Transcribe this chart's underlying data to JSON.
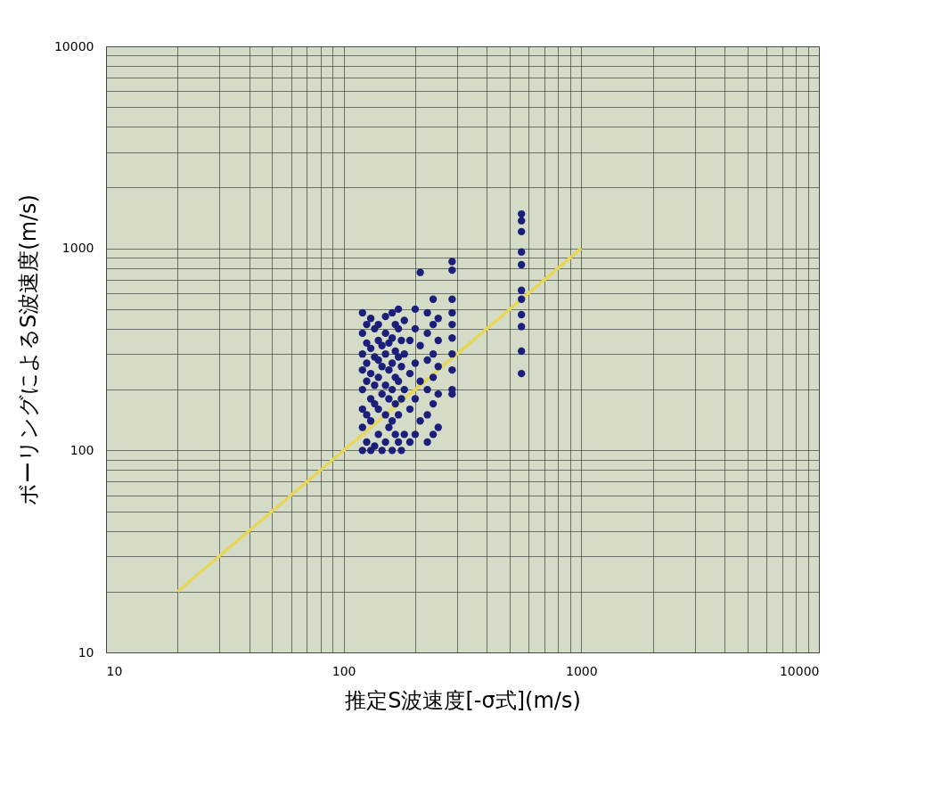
{
  "chart_data": {
    "type": "scatter",
    "xlabel": "推定S波速度[-σ式](m/s)",
    "ylabel": "ボーリングによるS波速度(m/s)",
    "log": "xy",
    "grid": true,
    "xlim": [
      10,
      10000
    ],
    "ylim": [
      10,
      10000
    ],
    "xticks": [
      10,
      {
        "value": 20,
        "label": null
      },
      {
        "value": 30,
        "label": null
      },
      {
        "value": 40,
        "label": null
      },
      {
        "value": 50,
        "label": null
      },
      {
        "value": 60,
        "label": null
      },
      {
        "value": 70,
        "label": null
      },
      {
        "value": 80,
        "label": null
      },
      {
        "value": 90,
        "label": null
      },
      100,
      {
        "value": 200,
        "label": null
      },
      {
        "value": 300,
        "label": null
      },
      {
        "value": 400,
        "label": null
      },
      {
        "value": 500,
        "label": null
      },
      {
        "value": 600,
        "label": null
      },
      {
        "value": 700,
        "label": null
      },
      {
        "value": 800,
        "label": null
      },
      {
        "value": 900,
        "label": null
      },
      1000,
      {
        "value": 2000,
        "label": null
      },
      {
        "value": 3000,
        "label": null
      },
      {
        "value": 4000,
        "label": null
      },
      {
        "value": 5000,
        "label": null
      },
      {
        "value": 6000,
        "label": null
      },
      {
        "value": 7000,
        "label": null
      },
      {
        "value": 8000,
        "label": null
      },
      {
        "value": 9000,
        "label": null
      },
      10000
    ],
    "yticks": [
      10,
      {
        "value": 20,
        "label": null
      },
      {
        "value": 30,
        "label": null
      },
      {
        "value": 40,
        "label": null
      },
      {
        "value": 50,
        "label": null
      },
      {
        "value": 60,
        "label": null
      },
      {
        "value": 70,
        "label": null
      },
      {
        "value": 80,
        "label": null
      },
      {
        "value": 90,
        "label": null
      },
      100,
      {
        "value": 200,
        "label": null
      },
      {
        "value": 300,
        "label": null
      },
      {
        "value": 400,
        "label": null
      },
      {
        "value": 500,
        "label": null
      },
      {
        "value": 600,
        "label": null
      },
      {
        "value": 700,
        "label": null
      },
      {
        "value": 800,
        "label": null
      },
      {
        "value": 900,
        "label": null
      },
      1000,
      {
        "value": 2000,
        "label": null
      },
      {
        "value": 3000,
        "label": null
      },
      {
        "value": 4000,
        "label": null
      },
      {
        "value": 5000,
        "label": null
      },
      {
        "value": 6000,
        "label": null
      },
      {
        "value": 7000,
        "label": null
      },
      {
        "value": 8000,
        "label": null
      },
      {
        "value": 9000,
        "label": null
      },
      10000
    ],
    "series": [
      {
        "color": "#1c1f7a",
        "marker": "circle",
        "x": [
          120,
          120,
          120,
          120,
          120,
          120,
          120,
          120,
          125,
          125,
          125,
          125,
          125,
          125,
          130,
          130,
          130,
          130,
          130,
          130,
          135,
          135,
          135,
          135,
          135,
          140,
          140,
          140,
          140,
          140,
          140,
          145,
          145,
          145,
          145,
          150,
          150,
          150,
          150,
          150,
          150,
          155,
          155,
          155,
          155,
          160,
          160,
          160,
          160,
          160,
          160,
          165,
          165,
          165,
          165,
          165,
          170,
          170,
          170,
          170,
          170,
          170,
          175,
          175,
          175,
          175,
          180,
          180,
          180,
          180,
          190,
          190,
          190,
          190,
          200,
          200,
          200,
          200,
          200,
          210,
          210,
          210,
          210,
          225,
          225,
          225,
          225,
          225,
          225,
          238,
          238,
          238,
          238,
          238,
          238,
          250,
          250,
          250,
          250,
          250,
          286,
          286,
          286,
          286,
          286,
          286,
          286,
          286,
          286,
          286,
          560,
          560,
          560,
          560,
          560,
          560,
          560,
          560,
          560,
          560,
          560
        ],
        "values": [
          100,
          130,
          160,
          200,
          250,
          300,
          380,
          480,
          110,
          150,
          220,
          270,
          340,
          420,
          100,
          140,
          180,
          240,
          320,
          450,
          105,
          170,
          210,
          290,
          400,
          120,
          160,
          230,
          280,
          350,
          420,
          100,
          190,
          260,
          330,
          110,
          150,
          210,
          300,
          380,
          460,
          130,
          180,
          250,
          340,
          100,
          140,
          200,
          270,
          360,
          480,
          120,
          170,
          230,
          310,
          420,
          110,
          150,
          220,
          290,
          400,
          500,
          100,
          180,
          260,
          350,
          120,
          200,
          300,
          440,
          110,
          160,
          240,
          350,
          120,
          180,
          270,
          400,
          500,
          760,
          140,
          220,
          330,
          110,
          150,
          200,
          280,
          380,
          480,
          120,
          170,
          230,
          300,
          420,
          560,
          130,
          190,
          260,
          350,
          450,
          860,
          780,
          560,
          480,
          420,
          360,
          300,
          250,
          200,
          190,
          1480,
          1370,
          1210,
          960,
          830,
          620,
          560,
          470,
          410,
          310,
          240
        ]
      },
      {
        "type": "line",
        "color": "#e6d65a",
        "marker": "none",
        "line_style": "solid",
        "x": [
          20,
          1000
        ],
        "values": [
          20,
          1000
        ]
      }
    ]
  }
}
